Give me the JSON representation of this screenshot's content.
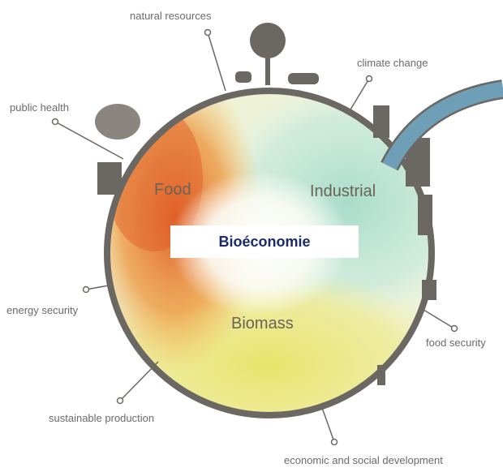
{
  "title": "Bioéconomie",
  "sectors": [
    {
      "label": "Food"
    },
    {
      "label": "Industrial"
    },
    {
      "label": "Biomass"
    }
  ],
  "themes": [
    {
      "label": "natural resources"
    },
    {
      "label": "climate change"
    },
    {
      "label": "public health"
    },
    {
      "label": "energy security"
    },
    {
      "label": "food security"
    },
    {
      "label": "sustainable production"
    },
    {
      "label": "economic and social development"
    }
  ]
}
